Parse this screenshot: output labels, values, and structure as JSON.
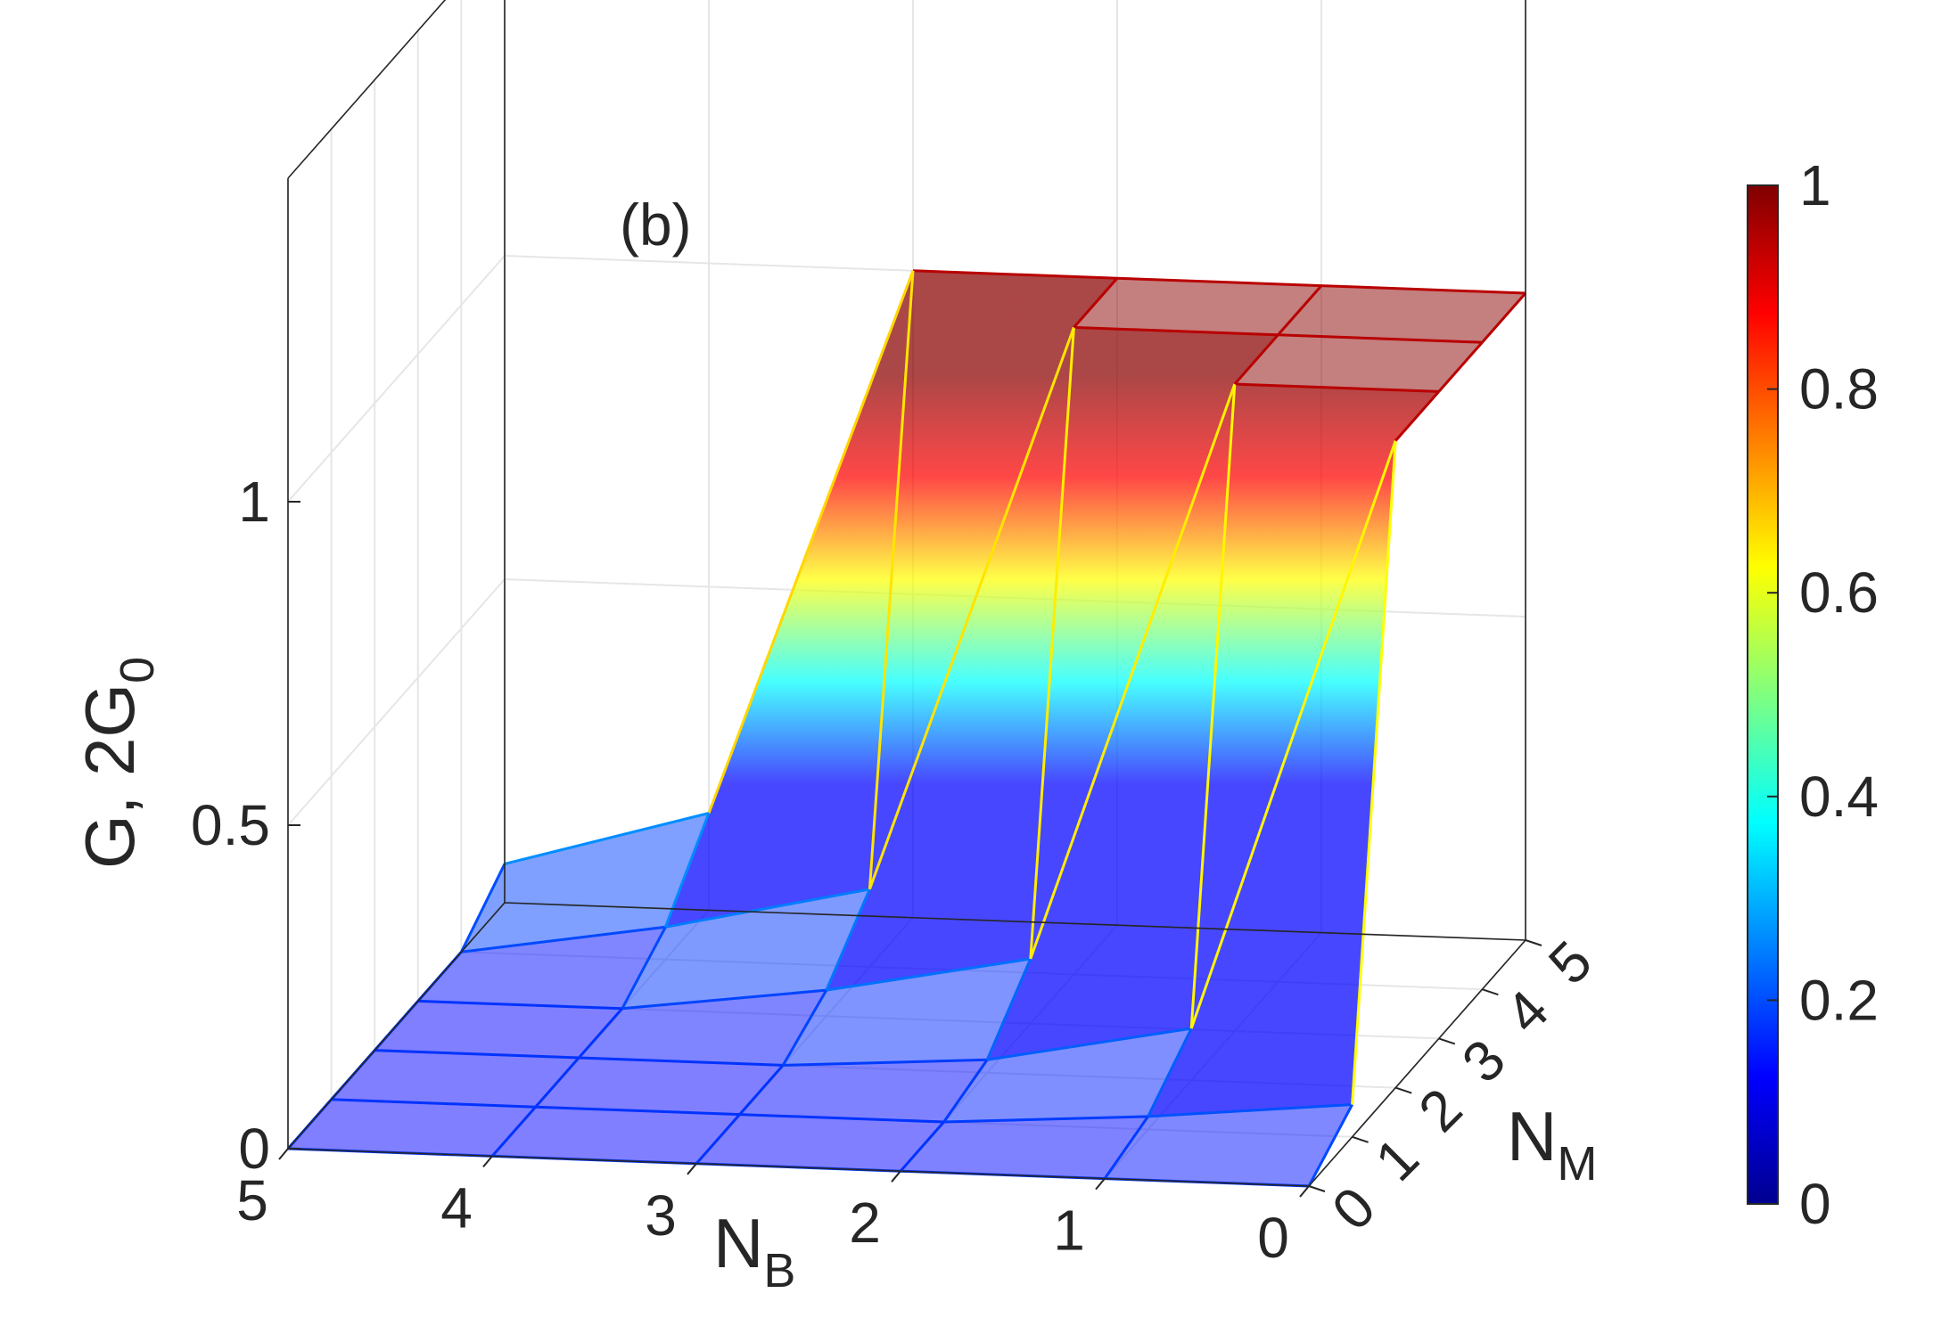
{
  "chart_data": {
    "type": "surface3d",
    "panel_label": "(b)",
    "x_axis": {
      "label": "N",
      "label_sub": "B",
      "ticks": [
        "5",
        "4",
        "3",
        "2",
        "1",
        "0"
      ]
    },
    "y_axis": {
      "label": "N",
      "label_sub": "M",
      "ticks": [
        "0",
        "1",
        "2",
        "3",
        "4",
        "5"
      ]
    },
    "z_axis": {
      "label": "G, 2G",
      "label_sub": "0",
      "ticks": [
        "0",
        "0.5",
        "1"
      ],
      "range": [
        0,
        1
      ]
    },
    "colorbar": {
      "colormap": "jet",
      "ticks": [
        "0",
        "0.2",
        "0.4",
        "0.6",
        "0.8",
        "1"
      ],
      "range": [
        0,
        1
      ]
    },
    "grid": true,
    "N_M": [
      0,
      1,
      2,
      3,
      4,
      5
    ],
    "N_B": [
      0,
      1,
      2,
      3,
      4,
      5
    ],
    "G_rows_by_N_M": [
      [
        0,
        0,
        0,
        0,
        0,
        0
      ],
      [
        0.05,
        0.02,
        0.0,
        0.0,
        0.0,
        0.0
      ],
      [
        1,
        0.08,
        0.02,
        0.0,
        0.0,
        0.0
      ],
      [
        1,
        1,
        0.1,
        0.04,
        0.0,
        0.0
      ],
      [
        1,
        1,
        1,
        0.12,
        0.05,
        0.0
      ],
      [
        1,
        1,
        1,
        1,
        0.15,
        0.06
      ]
    ],
    "colors": {
      "axis": "#262626",
      "grid": "#e6e6e6",
      "low": "#00008f",
      "high": "#800000"
    }
  }
}
